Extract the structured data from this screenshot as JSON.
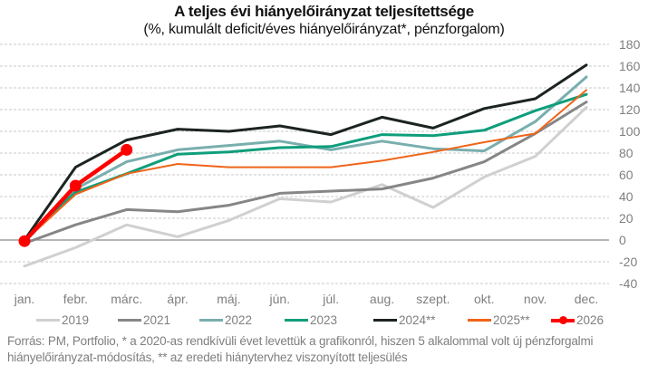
{
  "chart_data": {
    "type": "line",
    "title": "A teljes évi hiányelőirányzat teljesítettsége",
    "subtitle": "(%, kumulált deficit/éves hiányelőirányzat*, pénzforgalom)",
    "xlabel": "",
    "ylabel": "",
    "categories": [
      "jan.",
      "febr.",
      "márc.",
      "ápr.",
      "máj.",
      "jún.",
      "júl.",
      "aug.",
      "szept.",
      "okt.",
      "nov.",
      "dec."
    ],
    "ylim": [
      -40,
      180
    ],
    "yticks": [
      180,
      160,
      140,
      120,
      100,
      80,
      60,
      40,
      20,
      0,
      -20,
      -40
    ],
    "ytick_position": "right",
    "grid": true,
    "legend_position": "bottom",
    "series": [
      {
        "name": "2019",
        "color": "#d0d0d0",
        "values": [
          -24,
          -7,
          14,
          3,
          18,
          38,
          35,
          51,
          30,
          58,
          77,
          122
        ]
      },
      {
        "name": "2021",
        "color": "#868686",
        "values": [
          -3,
          14,
          28,
          26,
          32,
          43,
          45,
          47,
          57,
          72,
          98,
          127
        ]
      },
      {
        "name": "2022",
        "color": "#79aeae",
        "values": [
          -2,
          47,
          72,
          83,
          87,
          91,
          83,
          91,
          84,
          82,
          109,
          150
        ]
      },
      {
        "name": "2023",
        "color": "#0f9e7b",
        "values": [
          1,
          44,
          61,
          79,
          81,
          85,
          86,
          97,
          96,
          101,
          119,
          134
        ]
      },
      {
        "name": "2024**",
        "color": "#1c2420",
        "values": [
          0,
          67,
          92,
          102,
          100,
          105,
          97,
          113,
          103,
          121,
          130,
          161
        ]
      },
      {
        "name": "2025**",
        "color": "#f06418",
        "values": [
          -1,
          42,
          61,
          70,
          67,
          67,
          67,
          73,
          81,
          90,
          98,
          138
        ]
      },
      {
        "name": "2026",
        "color": "#ff0000",
        "values": [
          -1,
          50,
          83
        ],
        "markers": true
      }
    ]
  },
  "source_note": "Forrás: PM, Portfolio, * a 2020-as rendkívüli évet levettük a grafikonról, hiszen 5 alkalommal volt új pénzforgalmi hiányelőirányzat-módosítás, ** az eredeti hiánytervhez viszonyított teljesülés"
}
